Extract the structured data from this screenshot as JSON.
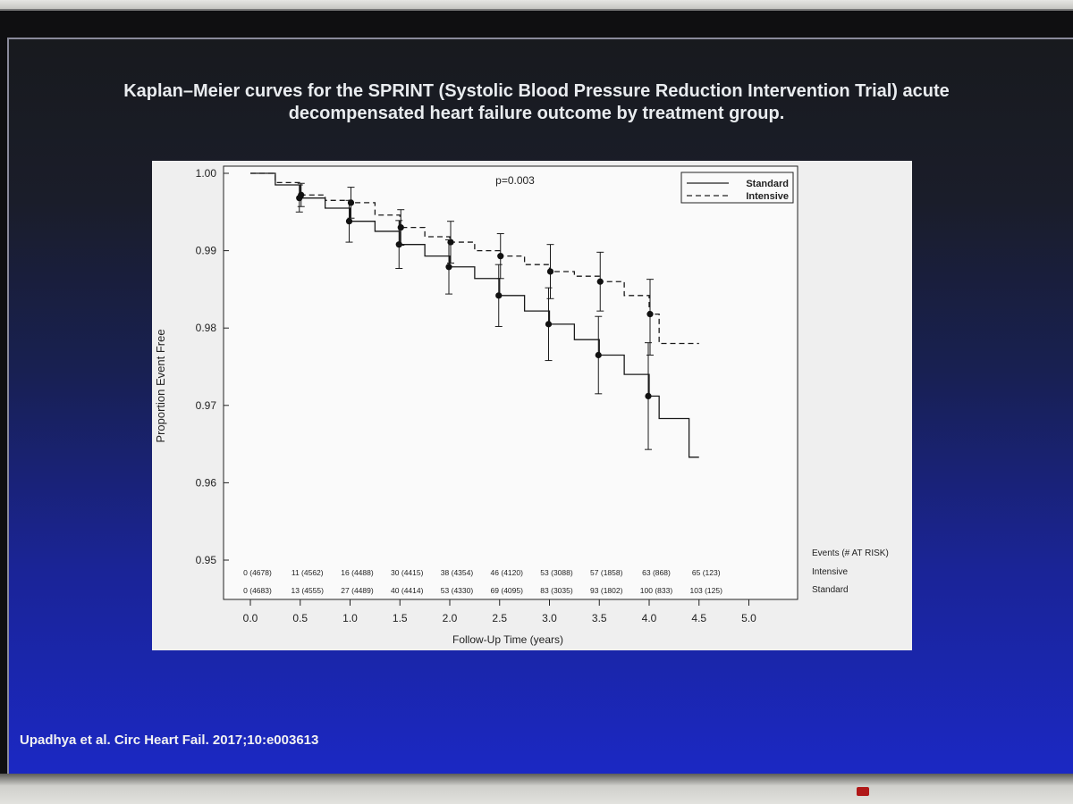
{
  "slide": {
    "title": "Kaplan–Meier curves for the SPRINT (Systolic Blood Pressure Reduction Intervention Trial) acute decompensated heart failure outcome by treatment group.",
    "citation": "Upadhya et al. Circ Heart Fail. 2017;10:e003613"
  },
  "chart_data": {
    "type": "line",
    "title": "",
    "xlabel": "Follow-Up Time (years)",
    "ylabel": "Proportion Event Free",
    "xlim": [
      0,
      5.0
    ],
    "ylim": [
      0.95,
      1.0
    ],
    "x_ticks": [
      "0.0",
      "0.5",
      "1.0",
      "1.5",
      "2.0",
      "2.5",
      "3.0",
      "3.5",
      "4.0",
      "4.5",
      "5.0"
    ],
    "y_ticks": [
      "0.95",
      "0.96",
      "0.97",
      "0.98",
      "0.99",
      "1.00"
    ],
    "annotation": "p=0.003",
    "legend_position": "top-right",
    "series": [
      {
        "name": "Standard",
        "style": "solid",
        "x": [
          0,
          0.25,
          0.5,
          0.75,
          1.0,
          1.25,
          1.5,
          1.75,
          2.0,
          2.25,
          2.5,
          2.75,
          3.0,
          3.25,
          3.5,
          3.75,
          4.0,
          4.1,
          4.4,
          4.5
        ],
        "y": [
          1.0,
          0.9985,
          0.9968,
          0.9955,
          0.9938,
          0.9925,
          0.9908,
          0.9893,
          0.9879,
          0.9864,
          0.9842,
          0.9822,
          0.9805,
          0.9785,
          0.9765,
          0.974,
          0.9712,
          0.9683,
          0.9633,
          0.9633
        ],
        "markers": [
          {
            "x": 0.5,
            "y": 0.9968,
            "lo": 0.995,
            "hi": 0.9985
          },
          {
            "x": 1.0,
            "y": 0.9938,
            "lo": 0.9911,
            "hi": 0.9965
          },
          {
            "x": 1.5,
            "y": 0.9908,
            "lo": 0.9877,
            "hi": 0.9939
          },
          {
            "x": 2.0,
            "y": 0.9879,
            "lo": 0.9844,
            "hi": 0.9914
          },
          {
            "x": 2.5,
            "y": 0.9842,
            "lo": 0.9802,
            "hi": 0.9882
          },
          {
            "x": 3.0,
            "y": 0.9805,
            "lo": 0.9758,
            "hi": 0.9852
          },
          {
            "x": 3.5,
            "y": 0.9765,
            "lo": 0.9715,
            "hi": 0.9815
          },
          {
            "x": 4.0,
            "y": 0.9712,
            "lo": 0.9643,
            "hi": 0.9781
          }
        ]
      },
      {
        "name": "Intensive",
        "style": "dashed",
        "x": [
          0,
          0.25,
          0.5,
          0.75,
          1.0,
          1.25,
          1.5,
          1.75,
          2.0,
          2.25,
          2.5,
          2.75,
          3.0,
          3.25,
          3.5,
          3.75,
          4.0,
          4.1,
          4.5
        ],
        "y": [
          1.0,
          0.9988,
          0.9972,
          0.9965,
          0.9962,
          0.9946,
          0.993,
          0.9918,
          0.9911,
          0.99,
          0.9893,
          0.9882,
          0.9873,
          0.9867,
          0.986,
          0.9842,
          0.9818,
          0.978,
          0.978
        ],
        "markers": [
          {
            "x": 0.5,
            "y": 0.9972,
            "lo": 0.9957,
            "hi": 0.9987
          },
          {
            "x": 1.0,
            "y": 0.9962,
            "lo": 0.9942,
            "hi": 0.9982
          },
          {
            "x": 1.5,
            "y": 0.993,
            "lo": 0.9907,
            "hi": 0.9953
          },
          {
            "x": 2.0,
            "y": 0.9911,
            "lo": 0.9884,
            "hi": 0.9938
          },
          {
            "x": 2.5,
            "y": 0.9893,
            "lo": 0.9864,
            "hi": 0.9922
          },
          {
            "x": 3.0,
            "y": 0.9873,
            "lo": 0.9838,
            "hi": 0.9908
          },
          {
            "x": 3.5,
            "y": 0.986,
            "lo": 0.9822,
            "hi": 0.9898
          },
          {
            "x": 4.0,
            "y": 0.9818,
            "lo": 0.9765,
            "hi": 0.9863
          }
        ]
      }
    ],
    "risk_table": {
      "header": "Events (# AT RISK)",
      "rows": [
        {
          "label": "Intensive",
          "values": [
            "0 (4678)",
            "11 (4562)",
            "16 (4488)",
            "30 (4415)",
            "38 (4354)",
            "46 (4120)",
            "53 (3088)",
            "57 (1858)",
            "63 (868)",
            "65 (123)"
          ]
        },
        {
          "label": "Standard",
          "values": [
            "0 (4683)",
            "13 (4555)",
            "27 (4489)",
            "40 (4414)",
            "53 (4330)",
            "69 (4095)",
            "83 (3035)",
            "93 (1802)",
            "100 (833)",
            "103 (125)"
          ]
        }
      ]
    }
  }
}
